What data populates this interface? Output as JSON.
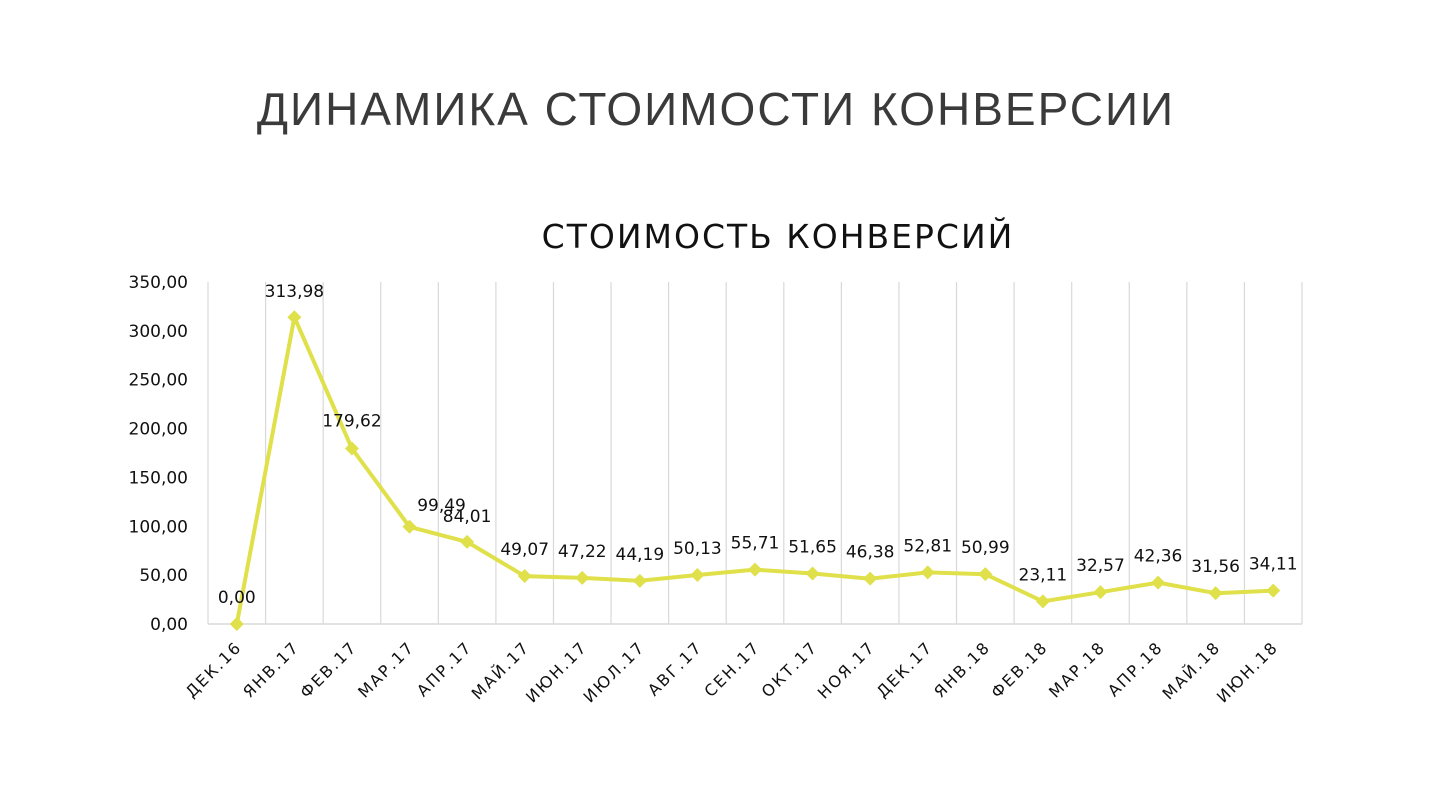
{
  "slide": {
    "title": "ДИНАМИКА СТОИМОСТИ КОНВЕРСИИ"
  },
  "chart_data": {
    "type": "line",
    "title": "СТОИМОСТЬ КОНВЕРСИЙ",
    "xlabel": "",
    "ylabel": "",
    "ylim": [
      0,
      350
    ],
    "y_ticks": [
      "0,00",
      "50,00",
      "100,00",
      "150,00",
      "200,00",
      "250,00",
      "300,00",
      "350,00"
    ],
    "categories": [
      "ДЕК.16",
      "ЯНВ.17",
      "ФЕВ.17",
      "МАР.17",
      "АПР.17",
      "МАЙ.17",
      "ИЮН.17",
      "ИЮЛ.17",
      "АВГ.17",
      "СЕН.17",
      "ОКТ.17",
      "НОЯ.17",
      "ДЕК.17",
      "ЯНВ.18",
      "ФЕВ.18",
      "МАР.18",
      "АПР.18",
      "МАЙ.18",
      "ИЮН.18"
    ],
    "series": [
      {
        "values": [
          0.0,
          313.98,
          179.62,
          99.49,
          84.01,
          49.07,
          47.22,
          44.19,
          50.13,
          55.71,
          51.65,
          46.38,
          52.81,
          50.99,
          23.11,
          32.57,
          42.36,
          31.56,
          34.11
        ],
        "labels": [
          "0,00",
          "313,98",
          "179,62",
          "99,49",
          "84,01",
          "49,07",
          "47,22",
          "44,19",
          "50,13",
          "55,71",
          "51,65",
          "46,38",
          "52,81",
          "50,99",
          "23,11",
          "32,57",
          "42,36",
          "31,56",
          "34,11"
        ],
        "color": "#dfe04a",
        "marker": "diamond"
      }
    ],
    "grid": "vertical",
    "grid_color": "#d9d9d9",
    "legend": "none"
  }
}
